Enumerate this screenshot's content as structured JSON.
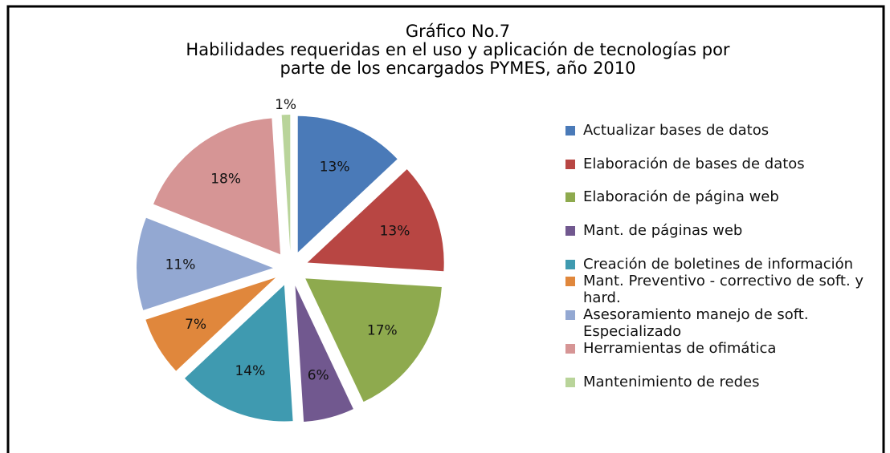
{
  "chart_data": {
    "type": "pie",
    "title": [
      "Gráfico No.7",
      "Habilidades requeridas en el uso y aplicación de tecnologías por",
      "parte de los encargados PYMES, año 2010"
    ],
    "categories": [
      "Actualizar bases de datos",
      "Elaboración de bases de datos",
      "Elaboración de página web",
      "Mant. de páginas web",
      "Creación de boletines de información",
      "Mant. Preventivo - correctivo de soft. y hard.",
      "Asesoramiento manejo de soft.  Especializado",
      "Herramientas de ofimática",
      "Mantenimiento de redes"
    ],
    "values": [
      13,
      13,
      17,
      6,
      14,
      7,
      11,
      18,
      1
    ],
    "value_labels": [
      "13%",
      "13%",
      "17%",
      "6%",
      "14%",
      "7%",
      "11%",
      "18%",
      "1%"
    ],
    "colors": [
      "#4a7ab8",
      "#b84643",
      "#8eaa4e",
      "#71588f",
      "#3f9ab0",
      "#e0873c",
      "#93a8d2",
      "#d69595",
      "#b9d49a"
    ],
    "legend": "right"
  }
}
